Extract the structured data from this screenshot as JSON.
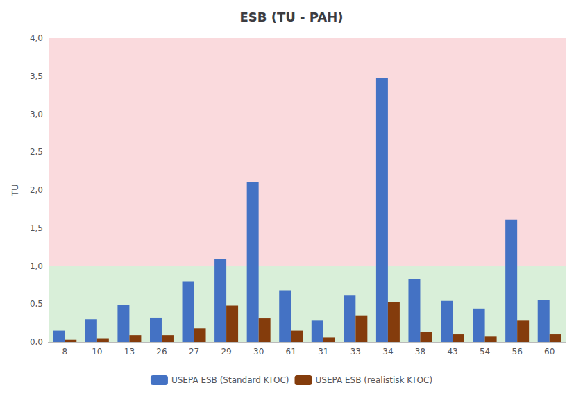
{
  "chart_data": {
    "type": "bar",
    "title": "ESB (TU - PAH)",
    "ylabel": "TU",
    "categories": [
      "8",
      "10",
      "13",
      "26",
      "27",
      "29",
      "30",
      "61",
      "31",
      "33",
      "34",
      "38",
      "43",
      "54",
      "56",
      "60"
    ],
    "series": [
      {
        "name": "USEPA ESB (Standard KTOC)",
        "color": "#4472C4",
        "values": [
          0.15,
          0.3,
          0.49,
          0.32,
          0.8,
          1.09,
          2.11,
          0.68,
          0.28,
          0.61,
          3.48,
          0.83,
          0.54,
          0.44,
          1.61,
          0.55
        ]
      },
      {
        "name": "USEPA ESB (realistisk KTOC)",
        "color": "#843C0C",
        "values": [
          0.03,
          0.05,
          0.09,
          0.09,
          0.18,
          0.48,
          0.31,
          0.15,
          0.06,
          0.35,
          0.52,
          0.13,
          0.1,
          0.07,
          0.28,
          0.1
        ]
      }
    ],
    "zones": [
      {
        "from": 0.0,
        "to": 1.0,
        "color": "#D9EFD9"
      },
      {
        "from": 1.0,
        "to": 4.0,
        "color": "#FADADD"
      }
    ],
    "ylim": [
      0.0,
      4.0
    ],
    "yticks": [
      {
        "value": 0.0,
        "label": "0,0"
      },
      {
        "value": 0.5,
        "label": "0,5"
      },
      {
        "value": 1.0,
        "label": "1,0"
      },
      {
        "value": 1.5,
        "label": "1,5"
      },
      {
        "value": 2.0,
        "label": "2,0"
      },
      {
        "value": 2.5,
        "label": "2,5"
      },
      {
        "value": 3.0,
        "label": "3,0"
      },
      {
        "value": 3.5,
        "label": "3,5"
      },
      {
        "value": 4.0,
        "label": "4,0"
      }
    ],
    "grid": true,
    "legend": "bottom"
  }
}
